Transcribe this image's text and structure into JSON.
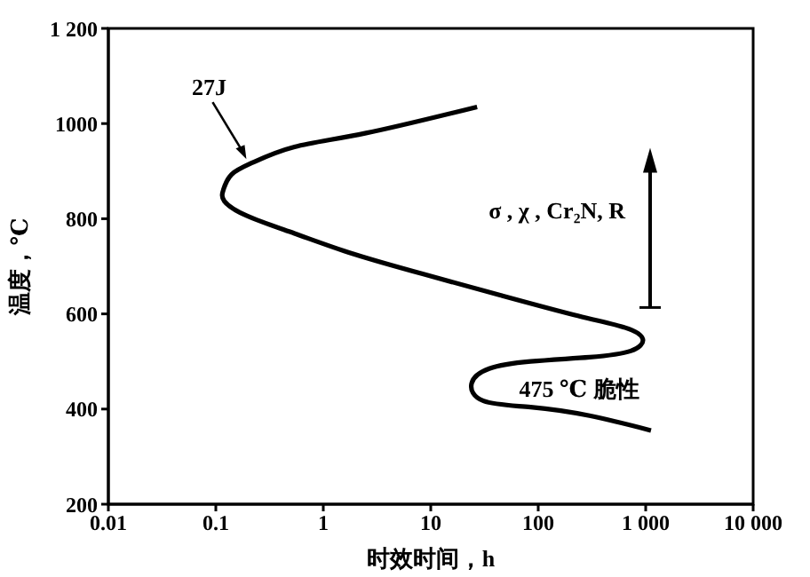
{
  "chart_data": {
    "type": "line",
    "xlabel": "时效时间，h",
    "ylabel": "温度，℃",
    "x": [
      27,
      2.5,
      0.54,
      0.22,
      0.14,
      0.118,
      0.12,
      0.195,
      0.54,
      1.9,
      8.7,
      45,
      234,
      645,
      940,
      725,
      300,
      85,
      35,
      24,
      31,
      85,
      300,
      1120
    ],
    "series": [
      {
        "color": "#000000",
        "values": [
          1035,
          980,
          951,
          918,
          893,
          862,
          837,
          806,
          769,
          726,
          683,
          639,
          596,
          571,
          547,
          522,
          509,
          500,
          485,
          454,
          417,
          404,
          386,
          355
        ]
      }
    ],
    "xlim": [
      0.01,
      10000
    ],
    "ylim": [
      200,
      1200
    ],
    "xticks": [
      0.01,
      0.1,
      1,
      10,
      100,
      {
        "value": 1000,
        "label": "1 000"
      },
      {
        "value": 10000,
        "label": "10 000"
      }
    ],
    "yticks": [
      200,
      400,
      600,
      800,
      1000,
      {
        "value": 1200,
        "label": "1 200"
      }
    ],
    "log": "x",
    "grid": false,
    "legend": false,
    "marker": "none",
    "line_style": "solid",
    "annotations": [
      {
        "text": "27J",
        "x": 0.2,
        "y": 918
      },
      "475 ℃ 脆性",
      "σ , χ , Cr₂N, R"
    ]
  }
}
